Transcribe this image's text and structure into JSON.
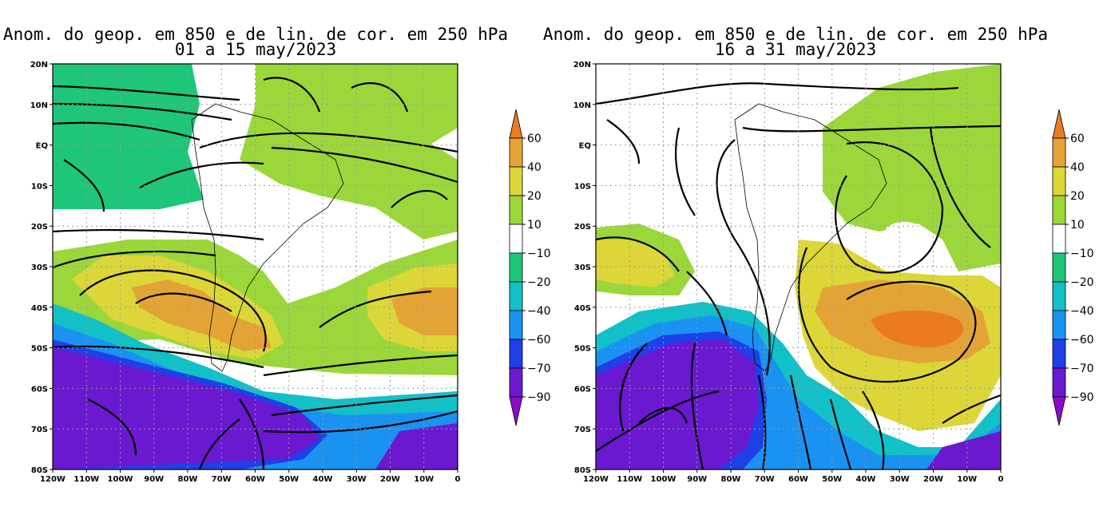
{
  "panels": [
    {
      "title_line1": "Anom. do geop. em 850 e de lin. de cor. em 250 hPa",
      "title_line2": "01 a 15 may/2023"
    },
    {
      "title_line1": "Anom. do geop. em 850 e de lin. de cor. em 250 hPa",
      "title_line2": "16 a 31 may/2023"
    }
  ],
  "axes": {
    "lat_labels": [
      "20N",
      "10N",
      "EQ",
      "10S",
      "20S",
      "30S",
      "40S",
      "50S",
      "60S",
      "70S",
      "80S"
    ],
    "lon_labels": [
      "120W",
      "110W",
      "100W",
      "90W",
      "80W",
      "70W",
      "60W",
      "50W",
      "40W",
      "30W",
      "20W",
      "10W",
      "0"
    ],
    "lat_range": [
      -80,
      20
    ],
    "lon_range": [
      -120,
      0
    ],
    "grid": true
  },
  "colorbar": {
    "labels": [
      "60",
      "40",
      "20",
      "10",
      "−10",
      "−20",
      "−40",
      "−60",
      "−70",
      "−90"
    ],
    "colors": {
      "gt60": "#ec7a21",
      "40_60": "#e4a435",
      "20_40": "#dcd638",
      "10_20": "#9bd73a",
      "m10_10": "#ffffff",
      "m20_m10": "#1ec67a",
      "m40_m20": "#12c0c8",
      "m60_m40": "#1a92f2",
      "m70_m60": "#1f3fe8",
      "m90_m70": "#6a19d0",
      "lt_m90": "#8f0ac8"
    }
  }
}
